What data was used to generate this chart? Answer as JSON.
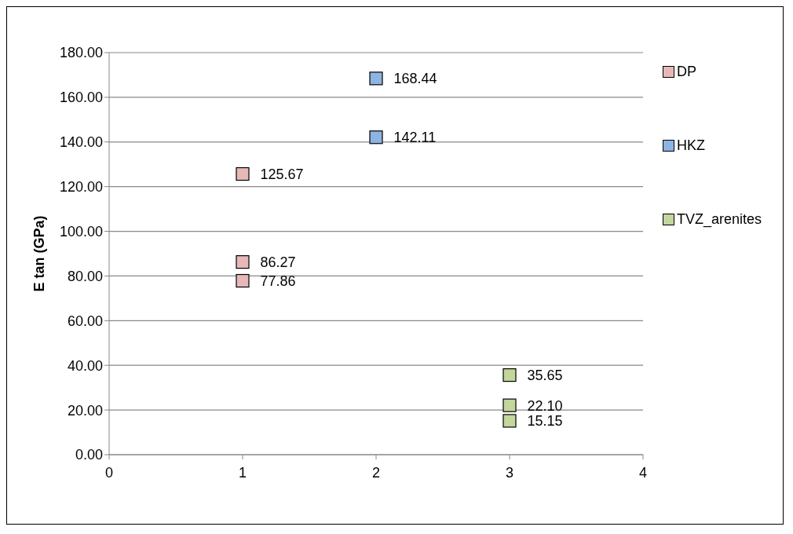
{
  "chart_data": {
    "type": "scatter",
    "ylabel": "E tan (GPa)",
    "xlim": [
      0,
      4
    ],
    "xticks": [
      0,
      1,
      2,
      3,
      4
    ],
    "ylim": [
      0,
      180
    ],
    "yticks": [
      {
        "value": 0,
        "label": "0.00"
      },
      {
        "value": 20,
        "label": "20.00"
      },
      {
        "value": 40,
        "label": "40.00"
      },
      {
        "value": 60,
        "label": "60.00"
      },
      {
        "value": 80,
        "label": "80.00"
      },
      {
        "value": 100,
        "label": "100.00"
      },
      {
        "value": 120,
        "label": "120.00"
      },
      {
        "value": 140,
        "label": "140.00"
      },
      {
        "value": 160,
        "label": "160.00"
      },
      {
        "value": 180,
        "label": "180.00"
      }
    ],
    "grid": "y",
    "legend": "right",
    "marker": "square",
    "series": [
      {
        "name": "DP",
        "color": "#e6b9b8",
        "x": [
          1,
          1,
          1
        ],
        "values": [
          125.67,
          86.27,
          77.86
        ],
        "value_labels": [
          "125.67",
          "86.27",
          "77.86"
        ]
      },
      {
        "name": "HKZ",
        "color": "#8db4e2",
        "x": [
          2,
          2
        ],
        "values": [
          168.44,
          142.11
        ],
        "value_labels": [
          "168.44",
          "142.11"
        ]
      },
      {
        "name": "TVZ_arenites",
        "color": "#c3d69b",
        "x": [
          3,
          3,
          3
        ],
        "values": [
          35.65,
          22.1,
          15.15
        ],
        "value_labels": [
          "35.65",
          "22.10",
          "15.15"
        ]
      }
    ]
  }
}
